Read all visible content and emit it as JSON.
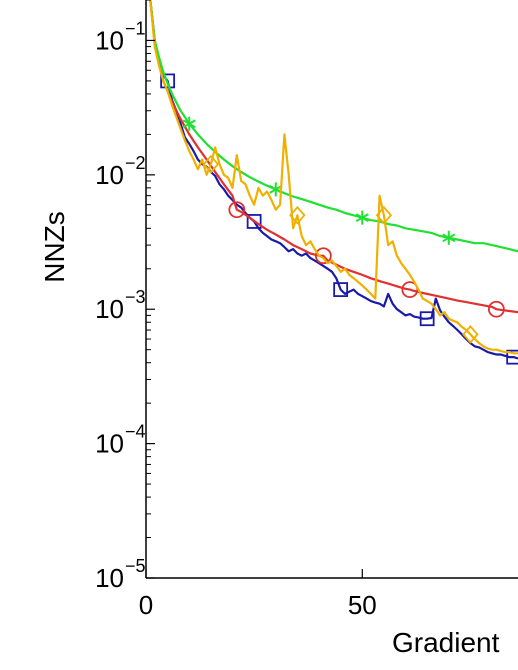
{
  "chart_data": {
    "type": "line",
    "xlabel": "Gradient",
    "ylabel": "NNZs",
    "yscale": "log",
    "xlim": [
      0,
      86
    ],
    "ylim": [
      1e-05,
      0.2
    ],
    "x_ticks": [
      {
        "value": 0,
        "label": "0"
      },
      {
        "value": 50,
        "label": "50"
      }
    ],
    "y_ticks": [
      {
        "value": 0.1,
        "base": "10",
        "exp": "−1"
      },
      {
        "value": 0.01,
        "base": "10",
        "exp": "−2"
      },
      {
        "value": 0.001,
        "base": "10",
        "exp": "−3"
      },
      {
        "value": 0.0001,
        "base": "10",
        "exp": "−4"
      },
      {
        "value": 1e-05,
        "base": "10",
        "exp": "−5"
      }
    ],
    "grid": false,
    "series": [
      {
        "color": "#1a1aa8",
        "marker": "square",
        "x": [
          1,
          2,
          3,
          4,
          5,
          6,
          7,
          8,
          9,
          10,
          11,
          12,
          13,
          14,
          15,
          16,
          17,
          18,
          19,
          20,
          21,
          22,
          23,
          24,
          25,
          26,
          27,
          28,
          29,
          30,
          31,
          32,
          33,
          34,
          35,
          36,
          37,
          38,
          39,
          40,
          41,
          42,
          43,
          44,
          45,
          46,
          47,
          48,
          49,
          50,
          51,
          52,
          53,
          54,
          55,
          56,
          57,
          58,
          59,
          60,
          61,
          62,
          63,
          64,
          65,
          66,
          67,
          68,
          69,
          70,
          71,
          72,
          73,
          74,
          75,
          76,
          77,
          78,
          79,
          80,
          81,
          82,
          83,
          84,
          85,
          86
        ],
        "y": [
          0.2,
          0.1,
          0.07,
          0.055,
          0.05,
          0.036,
          0.03,
          0.024,
          0.019,
          0.017,
          0.015,
          0.013,
          0.012,
          0.0115,
          0.0105,
          0.0098,
          0.0085,
          0.0078,
          0.007,
          0.0065,
          0.006,
          0.0057,
          0.0052,
          0.0048,
          0.0045,
          0.004,
          0.0037,
          0.0035,
          0.0033,
          0.0032,
          0.0031,
          0.0029,
          0.0027,
          0.0028,
          0.0026,
          0.0025,
          0.0026,
          0.0024,
          0.0023,
          0.0022,
          0.0021,
          0.002,
          0.0019,
          0.0017,
          0.0014,
          0.0013,
          0.00135,
          0.0014,
          0.0013,
          0.00125,
          0.0012,
          0.00115,
          0.00112,
          0.0011,
          0.00105,
          0.0013,
          0.0011,
          0.001,
          0.00095,
          0.0009,
          0.00092,
          0.00088,
          0.00087,
          0.00085,
          0.00085,
          0.00086,
          0.0012,
          0.00098,
          0.00088,
          0.0008,
          0.00075,
          0.0007,
          0.00065,
          0.0006,
          0.00056,
          0.00053,
          0.00052,
          0.0005,
          0.00048,
          0.00047,
          0.00046,
          0.00046,
          0.00045,
          0.00044,
          0.00044,
          0.00043
        ],
        "marker_x": [
          5,
          25,
          45,
          65,
          85
        ]
      },
      {
        "color": "#e03030",
        "marker": "circle",
        "x": [
          1,
          2,
          3,
          4,
          5,
          6,
          8,
          10,
          12,
          14,
          16,
          18,
          20,
          21,
          22,
          24,
          26,
          28,
          30,
          32,
          34,
          36,
          38,
          40,
          41,
          42,
          44,
          46,
          48,
          50,
          52,
          54,
          56,
          58,
          60,
          61,
          62,
          64,
          66,
          68,
          70,
          72,
          74,
          76,
          78,
          80,
          81,
          82,
          84,
          86
        ],
        "y": [
          0.2,
          0.1,
          0.07,
          0.05,
          0.042,
          0.035,
          0.026,
          0.02,
          0.016,
          0.013,
          0.0105,
          0.0085,
          0.007,
          0.0055,
          0.0053,
          0.0048,
          0.0043,
          0.0039,
          0.0036,
          0.0033,
          0.003,
          0.0028,
          0.0026,
          0.0025,
          0.0025,
          0.0023,
          0.00215,
          0.002,
          0.0019,
          0.0018,
          0.0017,
          0.00162,
          0.00155,
          0.00148,
          0.00142,
          0.0014,
          0.00137,
          0.00132,
          0.00128,
          0.00124,
          0.0012,
          0.00116,
          0.00113,
          0.0011,
          0.00107,
          0.00104,
          0.001,
          0.00099,
          0.00097,
          0.00095
        ],
        "marker_x": [
          21,
          41,
          61,
          81
        ]
      },
      {
        "color": "#20e030",
        "marker": "asterisk",
        "x": [
          1,
          2,
          3,
          4,
          5,
          6,
          8,
          10,
          12,
          14,
          16,
          18,
          20,
          22,
          24,
          26,
          28,
          30,
          32,
          34,
          36,
          38,
          40,
          42,
          44,
          46,
          48,
          50,
          52,
          54,
          56,
          58,
          60,
          62,
          64,
          66,
          68,
          70,
          72,
          74,
          76,
          78,
          80,
          82,
          84,
          86
        ],
        "y": [
          0.2,
          0.1,
          0.075,
          0.058,
          0.048,
          0.04,
          0.03,
          0.024,
          0.02,
          0.017,
          0.0148,
          0.013,
          0.0116,
          0.0105,
          0.0096,
          0.0089,
          0.0083,
          0.0078,
          0.0073,
          0.0069,
          0.0066,
          0.0063,
          0.006,
          0.0057,
          0.0055,
          0.0052,
          0.005,
          0.0048,
          0.0046,
          0.0045,
          0.0043,
          0.0042,
          0.004,
          0.0039,
          0.0038,
          0.0037,
          0.0035,
          0.0034,
          0.0033,
          0.0032,
          0.0031,
          0.0031,
          0.003,
          0.0029,
          0.0028,
          0.0027
        ],
        "marker_x": [
          10,
          30,
          50,
          70
        ]
      },
      {
        "color": "#f0b000",
        "marker": "diamond",
        "x": [
          1,
          2,
          3,
          4,
          5,
          6,
          7,
          8,
          9,
          10,
          11,
          12,
          13,
          14,
          15,
          16,
          17,
          18,
          19,
          20,
          21,
          22,
          23,
          24,
          25,
          26,
          27,
          28,
          29,
          30,
          31,
          32,
          33,
          34,
          35,
          36,
          37,
          38,
          39,
          40,
          41,
          42,
          43,
          44,
          45,
          46,
          47,
          48,
          49,
          50,
          51,
          52,
          53,
          54,
          55,
          56,
          57,
          58,
          59,
          60,
          61,
          62,
          63,
          64,
          65,
          66,
          67,
          68,
          69,
          70,
          71,
          72,
          73,
          74,
          75,
          76,
          77,
          78,
          79,
          80,
          81,
          82,
          83,
          84,
          85,
          86
        ],
        "y": [
          0.2,
          0.09,
          0.065,
          0.05,
          0.042,
          0.033,
          0.027,
          0.022,
          0.018,
          0.015,
          0.013,
          0.011,
          0.013,
          0.01,
          0.012,
          0.016,
          0.012,
          0.01,
          0.0095,
          0.008,
          0.014,
          0.009,
          0.0085,
          0.007,
          0.006,
          0.008,
          0.007,
          0.0075,
          0.0065,
          0.0055,
          0.006,
          0.02,
          0.01,
          0.004,
          0.005,
          0.0035,
          0.003,
          0.0032,
          0.0028,
          0.0025,
          0.0024,
          0.0022,
          0.0023,
          0.0021,
          0.0019,
          0.002,
          0.0018,
          0.0017,
          0.0016,
          0.0015,
          0.0014,
          0.0013,
          0.0012,
          0.007,
          0.005,
          0.003,
          0.0032,
          0.0025,
          0.0022,
          0.002,
          0.0018,
          0.0016,
          0.0014,
          0.0012,
          0.00115,
          0.0011,
          0.001,
          0.0009,
          0.00095,
          0.00085,
          0.00082,
          0.0008,
          0.00074,
          0.0007,
          0.00065,
          0.0006,
          0.00056,
          0.00053,
          0.00051,
          0.0005,
          0.0005,
          0.00049,
          0.00048,
          0.00048,
          0.00047,
          0.00047
        ],
        "marker_x": [
          15,
          35,
          55,
          75
        ]
      }
    ]
  }
}
